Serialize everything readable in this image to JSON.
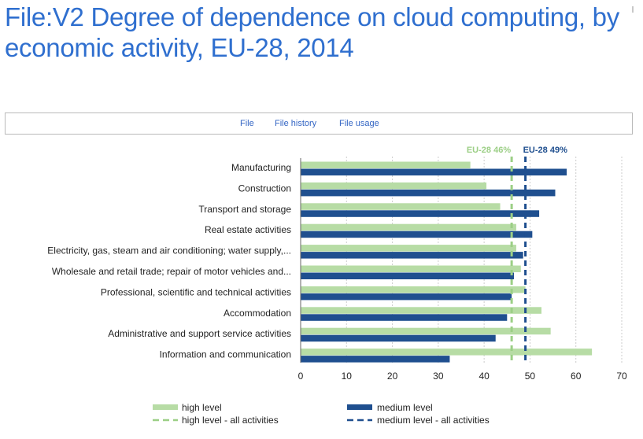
{
  "page": {
    "title": "File:V2 Degree of dependence on cloud computing, by economic activity, EU-28, 2014"
  },
  "tabs": [
    {
      "label": "File"
    },
    {
      "label": "File history"
    },
    {
      "label": "File usage"
    }
  ],
  "colors": {
    "title": "#2f6fcf",
    "link": "#3365c4",
    "high": "#b7dca5",
    "medium": "#1f4f8f",
    "high_ref": "#9ccf86",
    "medium_ref": "#1f4f8f"
  },
  "chart_data": {
    "type": "bar",
    "orientation": "horizontal",
    "categories": [
      "Manufacturing",
      "Construction",
      "Transport and storage",
      "Real estate activities",
      "Electricity, gas, steam and air conditioning; water supply,...",
      "Wholesale and retail trade; repair of motor vehicles and...",
      "Professional, scientific and technical activities",
      "Accommodation",
      "Administrative and support service activities",
      "Information and communication"
    ],
    "series": [
      {
        "name": "high level",
        "values": [
          37,
          40.5,
          43.5,
          47,
          47,
          48,
          49,
          52.5,
          54.5,
          63.5
        ]
      },
      {
        "name": "medium level",
        "values": [
          58,
          55.5,
          52,
          50.5,
          48.5,
          46.5,
          46,
          45,
          42.5,
          32.5
        ]
      }
    ],
    "reference_lines": [
      {
        "name": "high level - all activities",
        "value": 46,
        "label": "EU-28  46%"
      },
      {
        "name": "medium level - all activities",
        "value": 49,
        "label": "EU-28  49%"
      }
    ],
    "xlim": [
      0,
      70
    ],
    "xticks": [
      0,
      10,
      20,
      30,
      40,
      50,
      60,
      70
    ],
    "grid": true,
    "legend": [
      "high level",
      "medium level",
      "high level - all activities",
      "medium level - all activities"
    ],
    "legend_position": "bottom"
  }
}
